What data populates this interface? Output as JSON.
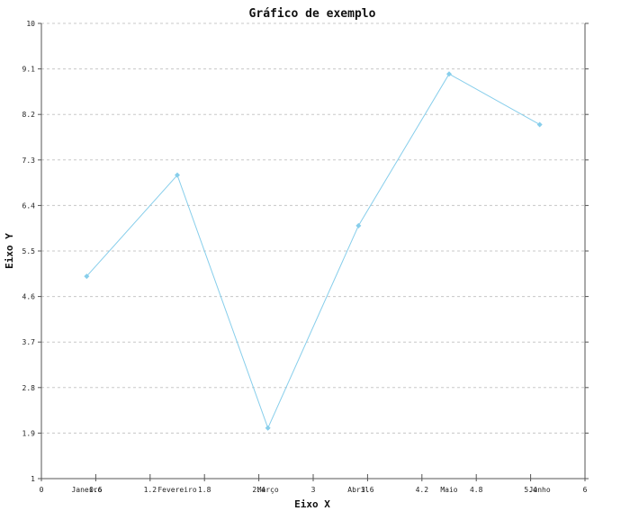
{
  "chart_data": {
    "type": "line",
    "title": "Gráfico de exemplo",
    "xlabel": "Eixo X",
    "ylabel": "Eixo Y",
    "xlim": [
      0,
      6
    ],
    "ylim": [
      1,
      10
    ],
    "x_ticks": [
      "0",
      "0.6",
      "1.2",
      "1.8",
      "2.4",
      "3",
      "3.6",
      "4.2",
      "4.8",
      "5.4",
      "6"
    ],
    "y_ticks": [
      "1",
      "1.9",
      "2.8",
      "3.7",
      "4.6",
      "5.5",
      "6.4",
      "7.3",
      "8.2",
      "9.1",
      "10"
    ],
    "categories": [
      "Janeiro",
      "Fevereiro",
      "Março",
      "Abril",
      "Maio",
      "Junho"
    ],
    "series": [
      {
        "values": [
          5,
          7,
          2,
          6,
          9,
          8
        ],
        "color": "#87ceeb"
      }
    ],
    "grid": "horizontal dashed",
    "legend": "none"
  }
}
